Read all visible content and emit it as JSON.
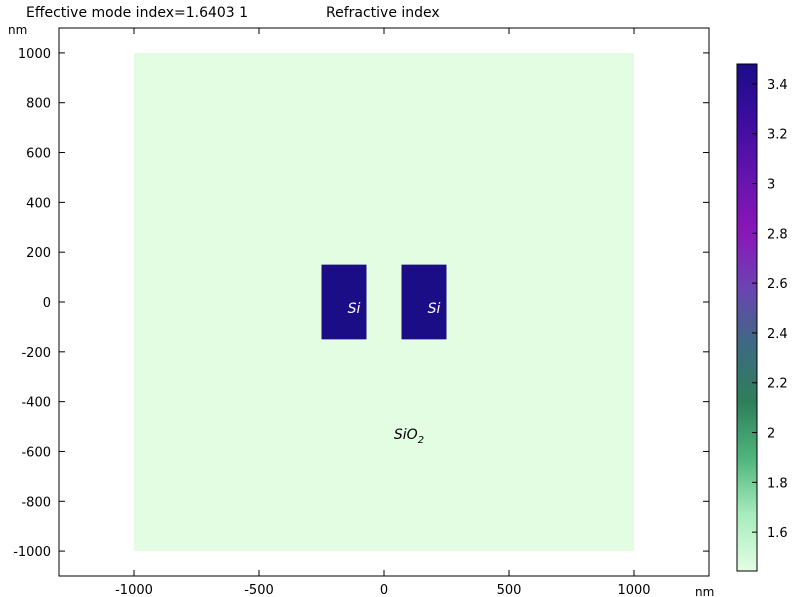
{
  "header": {
    "mode_label": "Effective mode index=1.6403 1",
    "title": "Refractive index"
  },
  "chart_data": {
    "type": "heatmap",
    "title": "Refractive index",
    "subtitle": "Effective mode index=1.6403 1",
    "xunit": "nm",
    "yunit": "nm",
    "xlim": [
      -1300,
      1300
    ],
    "ylim": [
      -1100,
      1100
    ],
    "xticks": [
      -1000,
      -500,
      0,
      500,
      1000
    ],
    "yticks": [
      -1000,
      -800,
      -600,
      -400,
      -200,
      0,
      200,
      400,
      600,
      800,
      1000
    ],
    "regions": [
      {
        "material": "SiO",
        "subscript": "2",
        "index": 1.444,
        "color": "#e3fde3",
        "x": [
          -1000,
          1000
        ],
        "y": [
          -1000,
          1000
        ],
        "label_at": [
          100,
          -550
        ]
      },
      {
        "material": "Si",
        "subscript": "",
        "index": 3.48,
        "color": "#1b0d86",
        "x": [
          -250,
          -70
        ],
        "y": [
          -150,
          150
        ],
        "label_at": [
          -120,
          -45
        ]
      },
      {
        "material": "Si",
        "subscript": "",
        "index": 3.48,
        "color": "#1b0d86",
        "x": [
          70,
          250
        ],
        "y": [
          -150,
          150
        ],
        "label_at": [
          200,
          -45
        ]
      }
    ],
    "colorbar": {
      "min": 1.444,
      "max": 3.48,
      "ticks": [
        1.6,
        1.8,
        2,
        2.2,
        2.4,
        2.6,
        2.8,
        3,
        3.2,
        3.4
      ],
      "colormap": [
        "#e3fde3",
        "#a8ecbc",
        "#4fb57c",
        "#2e7f5a",
        "#3d6a80",
        "#6a45b2",
        "#8a17b8",
        "#6513ae",
        "#3c0da0",
        "#1b0d86"
      ]
    }
  }
}
